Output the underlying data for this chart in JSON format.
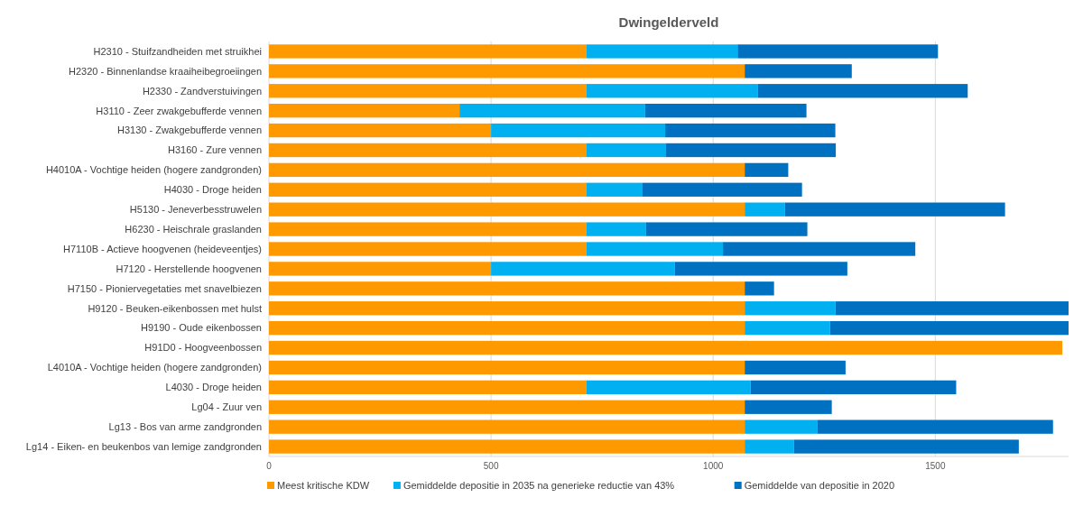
{
  "chart_data": {
    "type": "bar",
    "orientation": "horizontal",
    "stacked": true,
    "title": "Dwingelderveld",
    "categories": [
      "H2310 - Stuifzandheiden met struikhei",
      "H2320 - Binnenlandse kraaiheibegroeiingen",
      "H2330 - Zandverstuivingen",
      "H3110 - Zeer zwakgebufferde vennen",
      "H3130 - Zwakgebufferde vennen",
      "H3160 - Zure vennen",
      "H4010A - Vochtige heiden (hogere zandgronden)",
      "H4030 - Droge heiden",
      "H5130 - Jeneverbesstruwelen",
      "H6230 - Heischrale graslanden",
      "H7110B - Actieve hoogvenen (heideveentjes)",
      "H7120 - Herstellende hoogvenen",
      "H7150 - Pioniervegetaties met snavelbiezen",
      "H9120 - Beuken-eikenbossen met hulst",
      "H9190 - Oude eikenbossen",
      "H91D0 - Hoogveenbossen",
      "L4010A - Vochtige heiden (hogere zandgronden)",
      "L4030 - Droge heiden",
      "Lg04 - Zuur ven",
      "Lg13 - Bos van arme zandgronden",
      "Lg14 - Eiken- en beukenbos van lemige zandgronden"
    ],
    "series": [
      {
        "name": "Meest kritische KDW",
        "color": "#ff9900",
        "values": [
          714,
          1071,
          714,
          429,
          500,
          714,
          1071,
          714,
          1071,
          714,
          714,
          500,
          1071,
          1071,
          1071,
          1786,
          1071,
          714,
          1071,
          1071,
          1071
        ]
      },
      {
        "name": "Gemiddelde depositie in 2035 na generieke reductie van 43%",
        "color": "#00b0f0",
        "values": [
          341,
          0,
          386,
          418,
          392,
          180,
          0,
          127,
          90,
          135,
          308,
          414,
          0,
          204,
          192,
          0,
          0,
          370,
          0,
          164,
          111
        ]
      },
      {
        "name": "Gemiddelde van depositie in 2020",
        "color": "#0070c0",
        "values": [
          451,
          241,
          473,
          363,
          383,
          382,
          98,
          359,
          496,
          363,
          433,
          388,
          66,
          525,
          537,
          0,
          227,
          463,
          196,
          530,
          506
        ]
      }
    ],
    "xlim": [
      0,
      1800
    ],
    "xticks": [
      0,
      500,
      1000,
      1500
    ],
    "grid": "x",
    "legend": "bottom"
  }
}
